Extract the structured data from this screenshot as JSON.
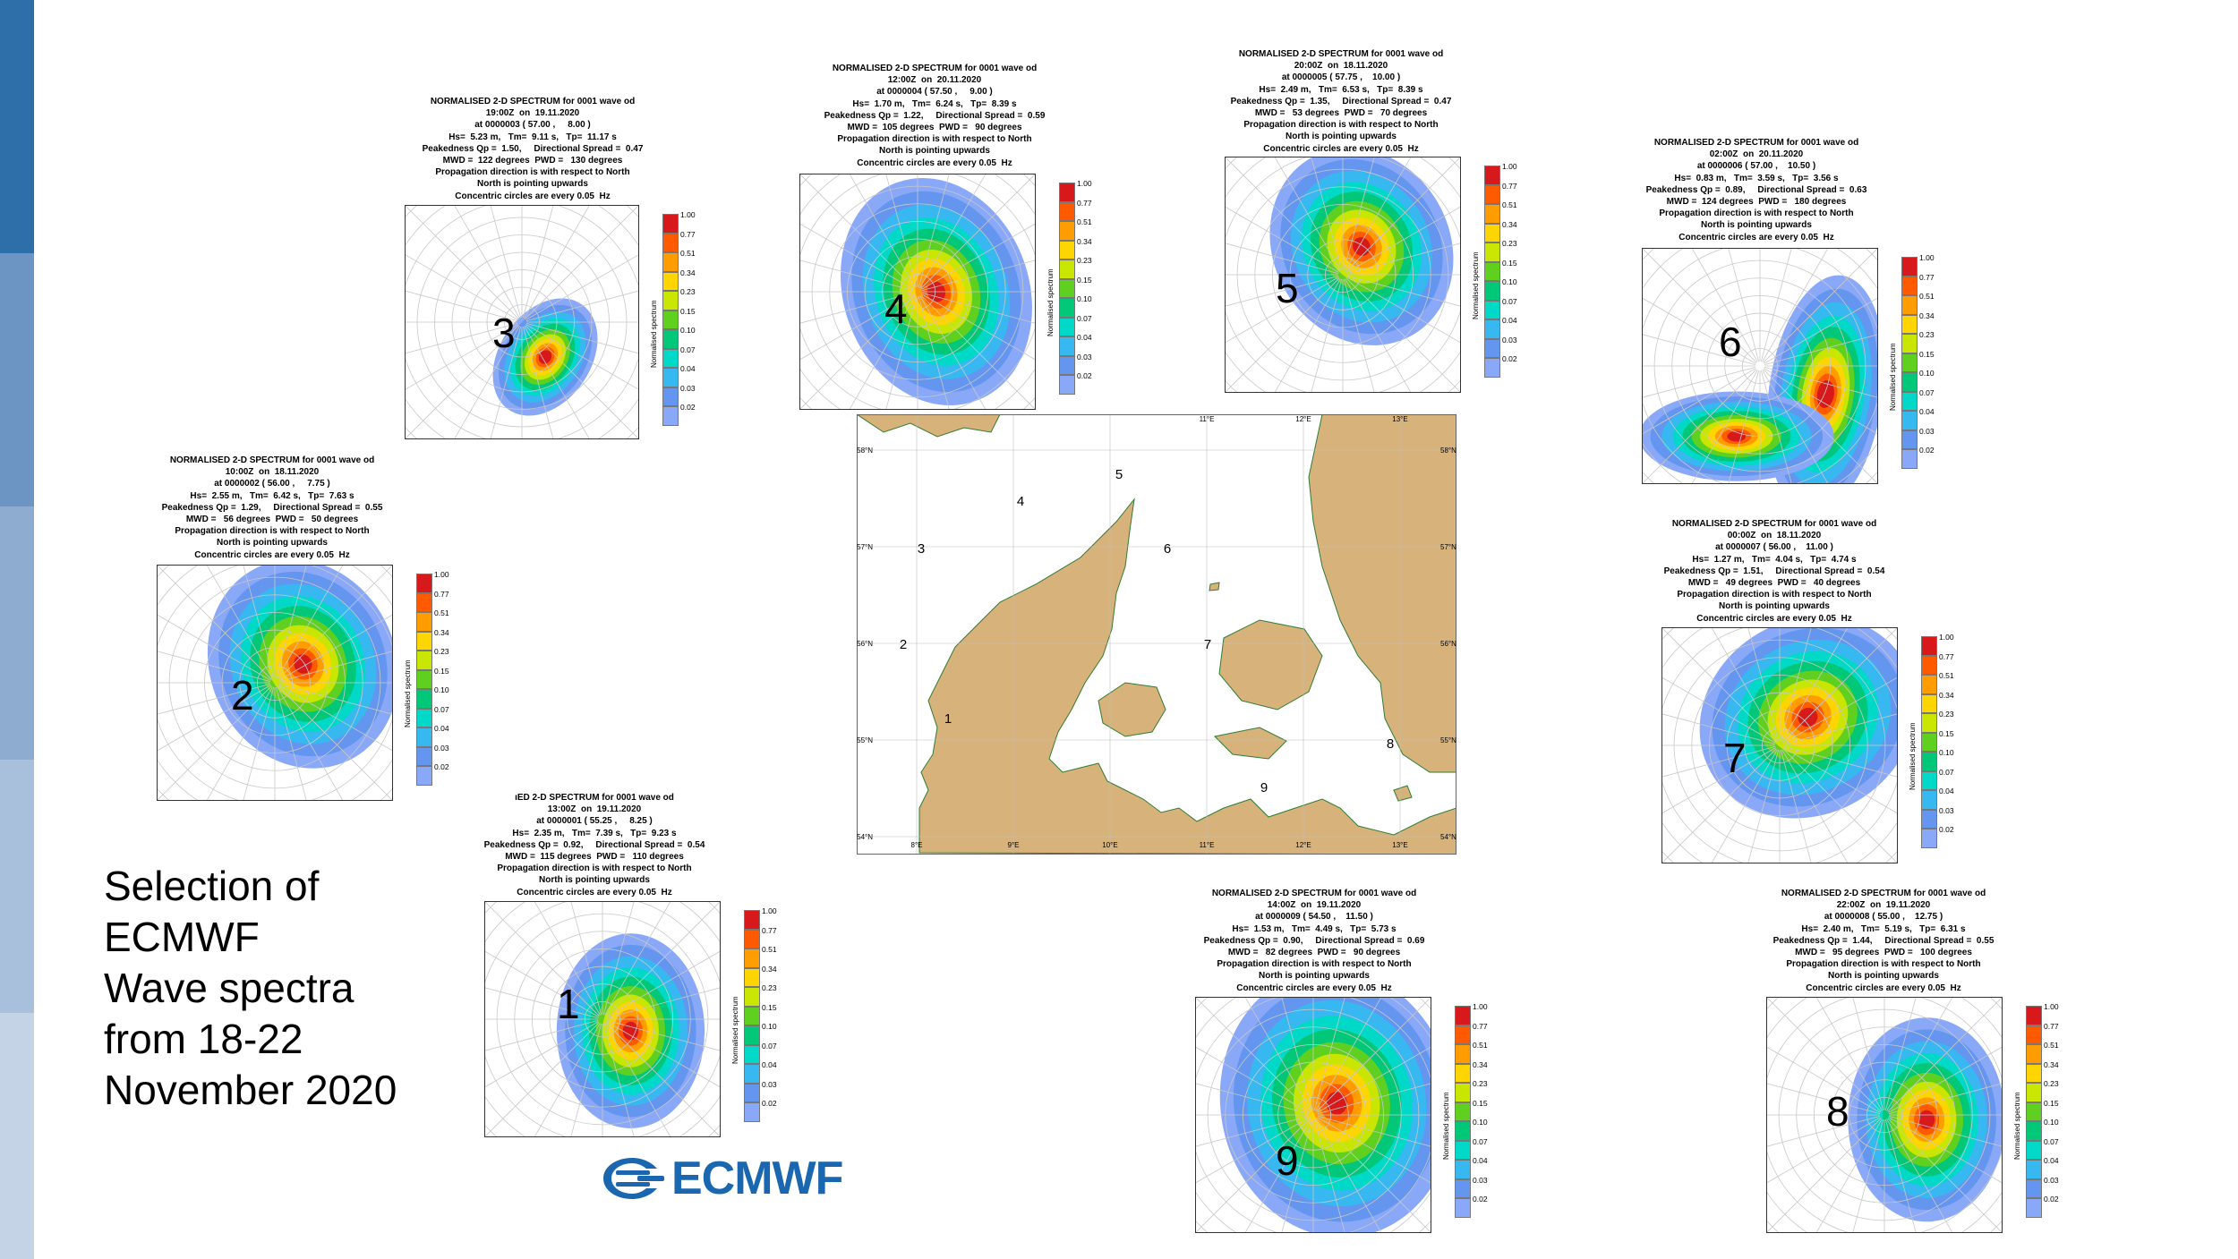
{
  "title": {
    "lines": [
      "Selection of",
      "ECMWF",
      "Wave spectra",
      "from 18-22",
      "November 2020"
    ]
  },
  "logo": {
    "text": "ECMWF",
    "color": "#1a67b0"
  },
  "strip_colors": [
    "#2f6fa9",
    "#6c95c3",
    "#8eaccf",
    "#a9c0dc",
    "#c5d3e7"
  ],
  "colorbar": {
    "title": "Normalised spectrum",
    "labels": [
      "1.00",
      "0.77",
      "0.51",
      "0.34",
      "0.23",
      "0.15",
      "0.10",
      "0.07",
      "0.04",
      "0.03",
      "0.02"
    ],
    "colors": [
      "#d7191c",
      "#ff5a00",
      "#ff9d00",
      "#ffd500",
      "#c8e600",
      "#60d020",
      "#00c878",
      "#00d8c8",
      "#38b8f0",
      "#6496f0",
      "#8aa8f8"
    ]
  },
  "panels": [
    {
      "id": "3",
      "number": "3",
      "header": [
        "NORMALISED 2-D SPECTRUM for 0001 wave od",
        "19:00Z  on  19.11.2020",
        "at 0000003 ( 57.00 ,     8.00 )",
        "Hs=  5.23 m,   Tm=  9.11 s,   Tp=  11.17 s",
        "Peakedness Qp =  1.50,     Directional Spread =  0.47",
        "MWD =  122 degrees  PWD =   130 degrees",
        "Propagation direction is with respect to North",
        "North is pointing upwards",
        "Concentric circles are every 0.05  Hz"
      ]
    },
    {
      "id": "4",
      "number": "4",
      "header": [
        "NORMALISED 2-D SPECTRUM for 0001 wave od",
        "12:00Z  on  20.11.2020",
        "at 0000004 ( 57.50 ,     9.00 )",
        "Hs=  1.70 m,   Tm=  6.24 s,   Tp=  8.39 s",
        "Peakedness Qp =  1.22,     Directional Spread =  0.59",
        "MWD =  105 degrees  PWD =   90 degrees",
        "Propagation direction is with respect to North",
        "North is pointing upwards",
        "Concentric circles are every 0.05  Hz"
      ]
    },
    {
      "id": "5",
      "number": "5",
      "header": [
        "NORMALISED 2-D SPECTRUM for 0001 wave od",
        "20:00Z  on  18.11.2020",
        "at 0000005 ( 57.75 ,    10.00 )",
        "Hs=  2.49 m,   Tm=  6.53 s,   Tp=  8.39 s",
        "Peakedness Qp =  1.35,     Directional Spread =  0.47",
        "MWD =   53 degrees  PWD =   70 degrees",
        "Propagation direction is with respect to North",
        "North is pointing upwards",
        "Concentric circles are every 0.05  Hz"
      ]
    },
    {
      "id": "6",
      "number": "6",
      "header": [
        "NORMALISED 2-D SPECTRUM for 0001 wave od",
        "02:00Z  on  20.11.2020",
        "at 0000006 ( 57.00 ,    10.50 )",
        "Hs=  0.83 m,   Tm=  3.59 s,   Tp=  3.56 s",
        "Peakedness Qp =  0.89,     Directional Spread =  0.63",
        "MWD =  124 degrees  PWD =   180 degrees",
        "Propagation direction is with respect to North",
        "North is pointing upwards",
        "Concentric circles are every 0.05  Hz"
      ]
    },
    {
      "id": "2",
      "number": "2",
      "header": [
        "NORMALISED 2-D SPECTRUM for 0001 wave od",
        "10:00Z  on  18.11.2020",
        "at 0000002 ( 56.00 ,     7.75 )",
        "Hs=  2.55 m,   Tm=  6.42 s,   Tp=  7.63 s",
        "Peakedness Qp =  1.29,     Directional Spread =  0.55",
        "MWD =   56 degrees  PWD =   50 degrees",
        "Propagation direction is with respect to North",
        "North is pointing upwards",
        "Concentric circles are every 0.05  Hz"
      ]
    },
    {
      "id": "7",
      "number": "7",
      "header": [
        "NORMALISED 2-D SPECTRUM for 0001 wave od",
        "00:00Z  on  18.11.2020",
        "at 0000007 ( 56.00 ,    11.00 )",
        "Hs=  1.27 m,   Tm=  4.04 s,   Tp=  4.74 s",
        "Peakedness Qp =  1.51,     Directional Spread =  0.54",
        "MWD =   49 degrees  PWD =   40 degrees",
        "Propagation direction is with respect to North",
        "North is pointing upwards",
        "Concentric circles are every 0.05  Hz"
      ]
    },
    {
      "id": "1",
      "number": "1",
      "header": [
        "ıED 2-D SPECTRUM for 0001 wave od",
        "13:00Z  on  19.11.2020",
        "at 0000001 ( 55.25 ,     8.25 )",
        "Hs=  2.35 m,   Tm=  7.39 s,   Tp=  9.23 s",
        "Peakedness Qp =  0.92,     Directional Spread =  0.54",
        "MWD =  115 degrees  PWD =   110 degrees",
        "Propagation direction is with respect to North",
        "North is pointing upwards",
        "Concentric circles are every 0.05  Hz"
      ]
    },
    {
      "id": "9",
      "number": "9",
      "header": [
        "NORMALISED 2-D SPECTRUM for 0001 wave od",
        "14:00Z  on  19.11.2020",
        "at 0000009 ( 54.50 ,    11.50 )",
        "Hs=  1.53 m,   Tm=  4.49 s,   Tp=  5.73 s",
        "Peakedness Qp =  0.90,     Directional Spread =  0.69",
        "MWD =   82 degrees  PWD =   90 degrees",
        "Propagation direction is with respect to North",
        "North is pointing upwards",
        "Concentric circles are every 0.05  Hz"
      ]
    },
    {
      "id": "8",
      "number": "8",
      "header": [
        "NORMALISED 2-D SPECTRUM for 0001 wave od",
        "22:00Z  on  19.11.2020",
        "at 0000008 ( 55.00 ,    12.75 )",
        "Hs=  2.40 m,   Tm=  5.19 s,   Tp=  6.31 s",
        "Peakedness Qp =  1.44,     Directional Spread =  0.55",
        "MWD =   95 degrees  PWD =   100 degrees",
        "Propagation direction is with respect to North",
        "North is pointing upwards",
        "Concentric circles are every 0.05  Hz"
      ]
    }
  ],
  "map": {
    "lat_labels": [
      "58°N",
      "57°N",
      "56°N",
      "55°N",
      "54°N"
    ],
    "lon_labels_bottom": [
      "8°E",
      "9°E",
      "10°E",
      "11°E",
      "12°E",
      "13°E"
    ],
    "lon_labels_top": [
      "11°E",
      "12°E",
      "13°E"
    ],
    "point_labels": [
      "1",
      "2",
      "3",
      "4",
      "5",
      "6",
      "7",
      "8",
      "9"
    ],
    "land_color": "#d8b27b",
    "coast_color": "#2e7d32"
  }
}
